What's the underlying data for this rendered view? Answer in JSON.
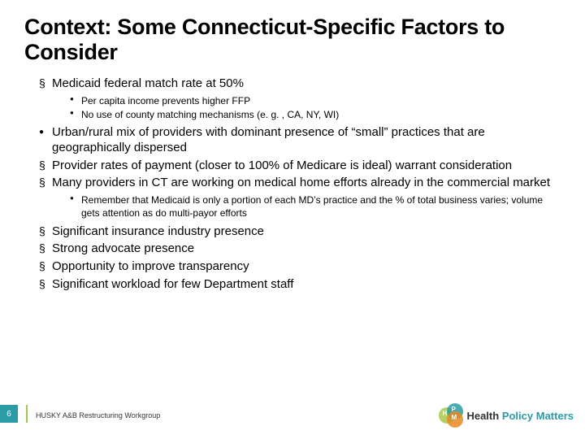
{
  "title": "Context: Some Connecticut-Specific Factors to Consider",
  "bullets": {
    "b1": "Medicaid federal match rate at 50%",
    "b1a": "Per capita income prevents higher FFP",
    "b1b": "No use of county matching mechanisms (e. g. , CA, NY, WI)",
    "b2": "Urban/rural mix of providers with dominant presence of “small” practices that are geographically dispersed",
    "b3": "Provider rates of payment (closer to 100% of Medicare is ideal) warrant consideration",
    "b4": "Many providers in CT are working on medical home efforts already in the commercial market",
    "b4a": "Remember that Medicaid is only a portion of each MD’s practice and the % of total business varies; volume gets attention as do multi-payor efforts",
    "b5": "Significant insurance industry presence",
    "b6": "Strong advocate presence",
    "b7": "Opportunity to improve transparency",
    "b8": "Significant workload for few Department staff"
  },
  "footer": {
    "page": "6",
    "text": "HUSKY A&B Restructuring Workgroup"
  },
  "logo": {
    "word1": "Health",
    "word2": "Policy",
    "word3": "Matters"
  },
  "colors": {
    "teal": "#2a9ca6",
    "green": "#a7c94b",
    "orange": "#e68a1f"
  }
}
